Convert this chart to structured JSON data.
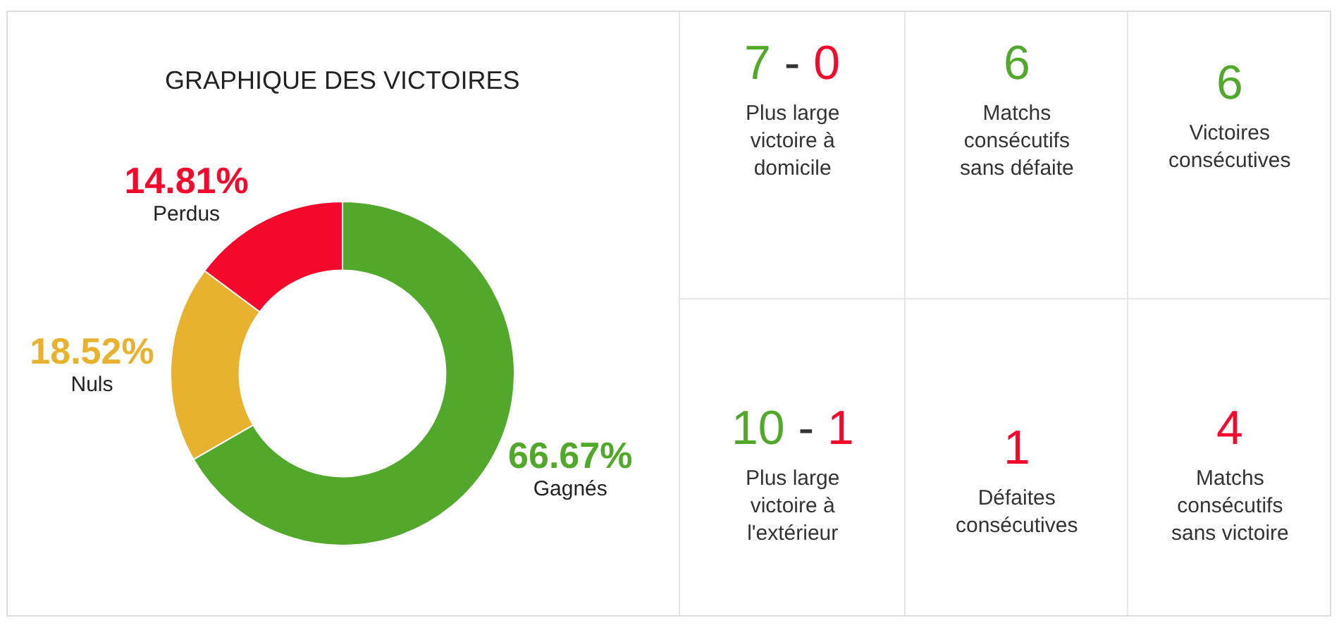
{
  "chart_data": [
    {
      "type": "donut",
      "title": "GRAPHIQUE DES VICTOIRES",
      "categories": [
        "Gagnés",
        "Nuls",
        "Perdus"
      ],
      "values": [
        66.67,
        18.52,
        14.81
      ],
      "colors": [
        "#52a82a",
        "#e8b22f",
        "#f4082b"
      ],
      "value_labels": [
        "66.67%",
        "18.52%",
        "14.81%"
      ]
    },
    {
      "type": "other",
      "annotations": [
        "7 - 0",
        "Plus large\nvictoire à\ndomicile",
        "6",
        "Matchs\nconsécutifs\nsans défaite",
        "6",
        "Victoires\nconsécutives",
        "10 - 1",
        "Plus large\nvictoire à\nl'extérieur",
        "1",
        "Défaites\nconsécutives",
        "4",
        "Matchs\nconsécutifs\nsans victoire"
      ],
      "colors": [
        "#52a82a",
        "#52a82a",
        "#52a82a",
        "#52a82a",
        "#f4082b",
        "#f4082b"
      ]
    }
  ]
}
